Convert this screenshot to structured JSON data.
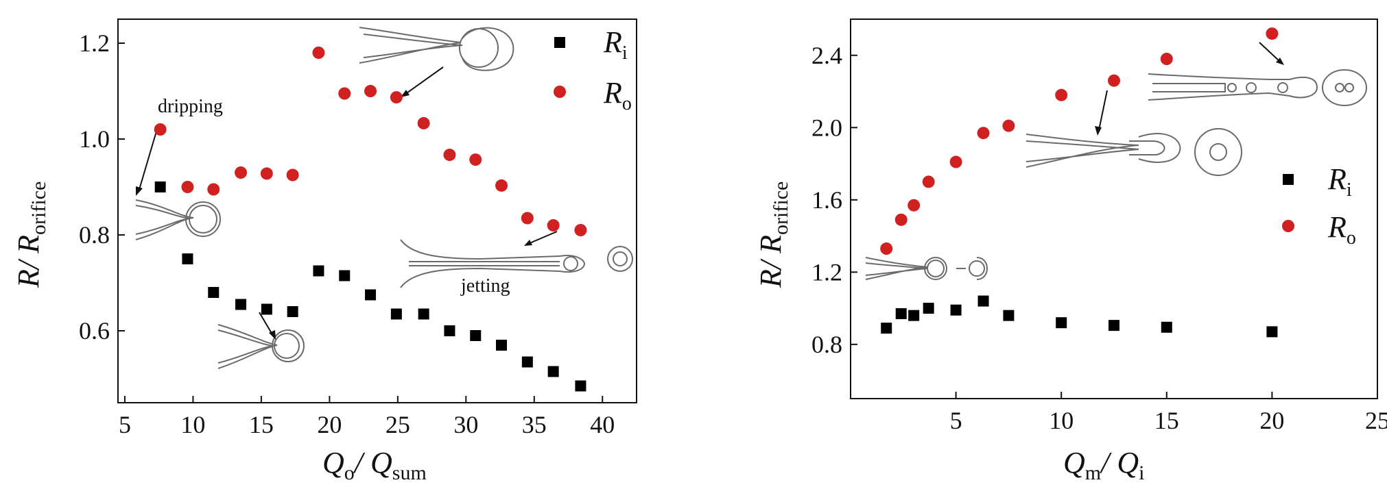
{
  "chart_data": [
    {
      "type": "scatter",
      "title": "",
      "xlabel": "Q_o / Q_sum",
      "xlabel_parts": {
        "a": "Q",
        "a_sub": "o",
        "sep": "/ ",
        "b": "Q",
        "b_sub": "sum"
      },
      "ylabel": "R/ R_orifice",
      "ylabel_parts": {
        "a": "R",
        "sep": "/ ",
        "b": "R",
        "b_sub": "orifice"
      },
      "xlim": [
        4.5,
        42.5
      ],
      "ylim": [
        0.45,
        1.25
      ],
      "xticks": [
        5,
        10,
        15,
        20,
        25,
        30,
        35,
        40
      ],
      "yticks": [
        0.6,
        0.8,
        1.0,
        1.2
      ],
      "xtick_labels": [
        "5",
        "10",
        "15",
        "20",
        "25",
        "30",
        "35",
        "40"
      ],
      "ytick_labels": [
        "0.6",
        "0.8",
        "1.0",
        "1.2"
      ],
      "legend_position": "top-right",
      "series": [
        {
          "name": "R_i",
          "label": "R",
          "sub": "i",
          "marker": "square",
          "color": "#000000",
          "points": [
            [
              7.6,
              0.9
            ],
            [
              9.6,
              0.75
            ],
            [
              11.5,
              0.68
            ],
            [
              13.5,
              0.655
            ],
            [
              15.4,
              0.645
            ],
            [
              17.3,
              0.64
            ],
            [
              19.2,
              0.725
            ],
            [
              21.1,
              0.715
            ],
            [
              23.0,
              0.675
            ],
            [
              24.9,
              0.635
            ],
            [
              26.9,
              0.635
            ],
            [
              28.8,
              0.6
            ],
            [
              30.7,
              0.59
            ],
            [
              32.6,
              0.57
            ],
            [
              34.5,
              0.535
            ],
            [
              36.4,
              0.515
            ],
            [
              38.4,
              0.485
            ]
          ]
        },
        {
          "name": "R_o",
          "label": "R",
          "sub": "o",
          "marker": "circle",
          "color": "#d02020",
          "points": [
            [
              7.6,
              1.02
            ],
            [
              9.6,
              0.9
            ],
            [
              11.5,
              0.895
            ],
            [
              13.5,
              0.93
            ],
            [
              15.4,
              0.928
            ],
            [
              17.3,
              0.925
            ],
            [
              19.2,
              1.18
            ],
            [
              21.1,
              1.095
            ],
            [
              23.0,
              1.1
            ],
            [
              24.9,
              1.087
            ],
            [
              26.9,
              1.033
            ],
            [
              28.8,
              0.967
            ],
            [
              30.7,
              0.957
            ],
            [
              32.6,
              0.903
            ],
            [
              34.5,
              0.835
            ],
            [
              36.4,
              0.82
            ],
            [
              38.4,
              0.81
            ]
          ]
        }
      ],
      "annotations": [
        "dripping",
        "jetting"
      ]
    },
    {
      "type": "scatter",
      "title": "",
      "xlabel": "Q_m / Q_i",
      "xlabel_parts": {
        "a": "Q",
        "a_sub": "m",
        "sep": "/ ",
        "b": "Q",
        "b_sub": "i"
      },
      "ylabel": "R/ R_orifice",
      "ylabel_parts": {
        "a": "R",
        "sep": "/ ",
        "b": "R",
        "b_sub": "orifice"
      },
      "xlim": [
        0,
        25
      ],
      "ylim": [
        0.5,
        2.6
      ],
      "xticks": [
        5,
        10,
        15,
        20,
        25
      ],
      "yticks": [
        0.8,
        1.2,
        1.6,
        2.0,
        2.4
      ],
      "xtick_labels": [
        "5",
        "10",
        "15",
        "20",
        "25"
      ],
      "ytick_labels": [
        "0.8",
        "1.2",
        "1.6",
        "2.0",
        "2.4"
      ],
      "legend_position": "right",
      "series": [
        {
          "name": "R_i",
          "label": "R",
          "sub": "i",
          "marker": "square",
          "color": "#000000",
          "points": [
            [
              1.7,
              0.89
            ],
            [
              2.4,
              0.97
            ],
            [
              3.0,
              0.96
            ],
            [
              3.7,
              1.0
            ],
            [
              5.0,
              0.99
            ],
            [
              6.3,
              1.04
            ],
            [
              7.5,
              0.96
            ],
            [
              10.0,
              0.92
            ],
            [
              12.5,
              0.905
            ],
            [
              15.0,
              0.895
            ],
            [
              20.0,
              0.87
            ]
          ]
        },
        {
          "name": "R_o",
          "label": "R",
          "sub": "o",
          "marker": "circle",
          "color": "#d02020",
          "points": [
            [
              1.7,
              1.33
            ],
            [
              2.4,
              1.49
            ],
            [
              3.0,
              1.57
            ],
            [
              3.7,
              1.7
            ],
            [
              5.0,
              1.81
            ],
            [
              6.3,
              1.97
            ],
            [
              7.5,
              2.01
            ],
            [
              10.0,
              2.18
            ],
            [
              12.5,
              2.26
            ],
            [
              15.0,
              2.38
            ],
            [
              20.0,
              2.52
            ]
          ]
        }
      ],
      "annotations": []
    }
  ]
}
